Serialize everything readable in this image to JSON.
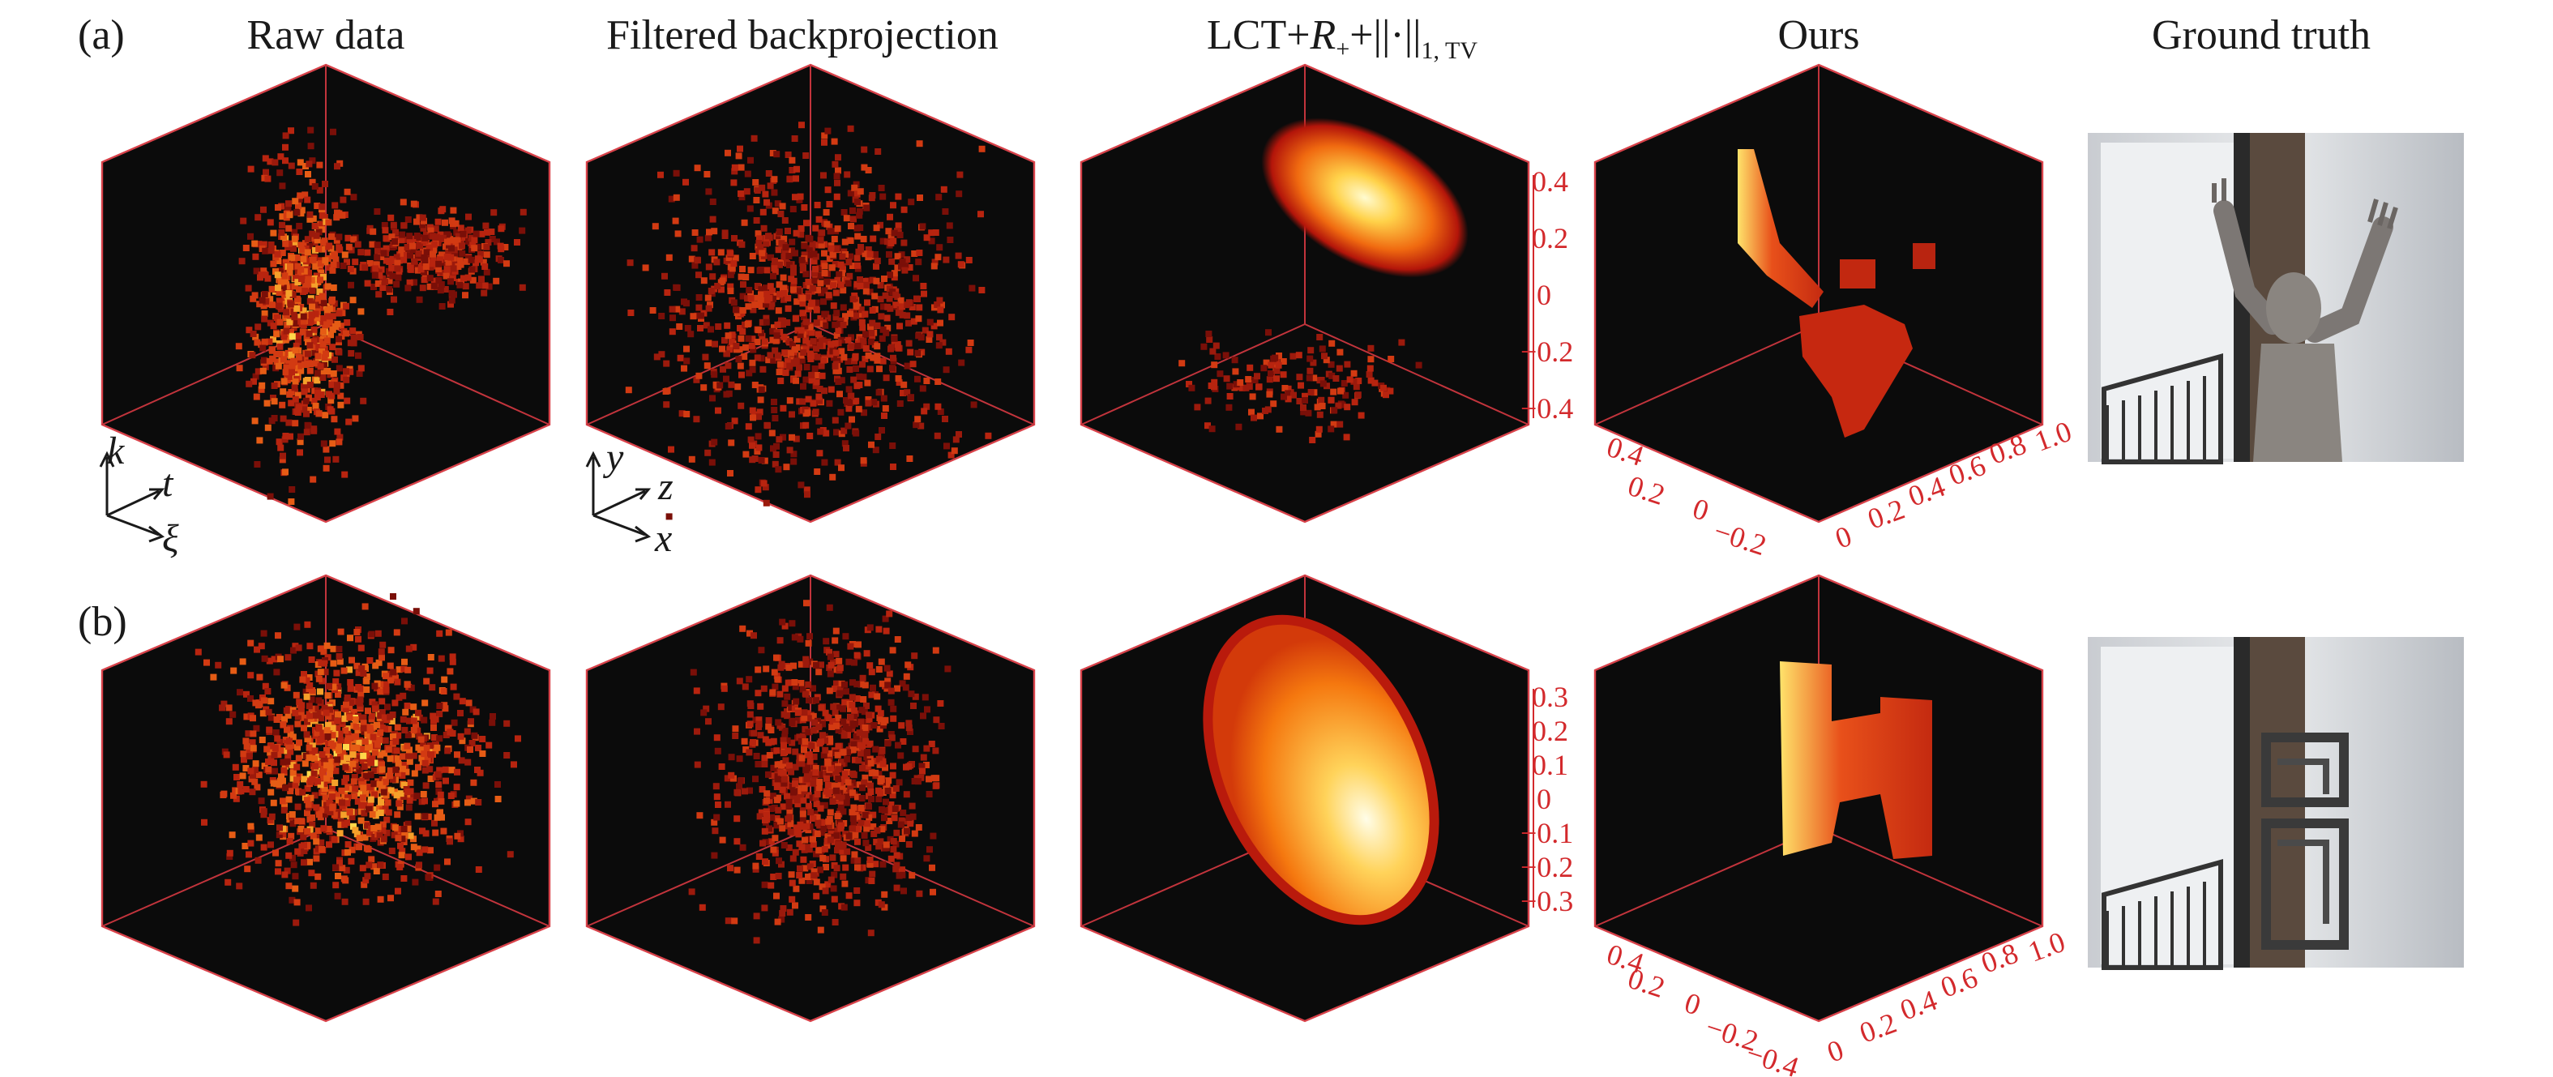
{
  "row_labels": [
    "(a)",
    "(b)"
  ],
  "column_titles": {
    "raw": "Raw data",
    "fbp": "Filtered backprojection",
    "lct": [
      "LCT+",
      "R",
      "+",
      "+||·||",
      "1, TV"
    ],
    "ours": "Ours",
    "truth": "Ground truth"
  },
  "raw_axes": [
    "k",
    "t",
    "ξ"
  ],
  "fbp_axes": [
    "y",
    "z",
    "x"
  ],
  "ours_ticks": {
    "a": {
      "vertical": [
        "0.4",
        "0.2",
        "0",
        "−0.2",
        "−0.4"
      ],
      "left": [
        "0.4",
        "0.2",
        "0",
        "−0.2"
      ],
      "right": [
        "0",
        "0.2",
        "0.4",
        "0.6",
        "0.8",
        "1.0"
      ]
    },
    "b": {
      "vertical": [
        "0.3",
        "0.2",
        "0.1",
        "0",
        "−0.1",
        "−0.2",
        "−0.3"
      ],
      "left": [
        "0.4",
        "0.2",
        "0",
        "−0.2",
        "−0.4"
      ],
      "right": [
        "0",
        "0.2",
        "0.4",
        "0.6",
        "0.8",
        "1.0"
      ]
    }
  }
}
